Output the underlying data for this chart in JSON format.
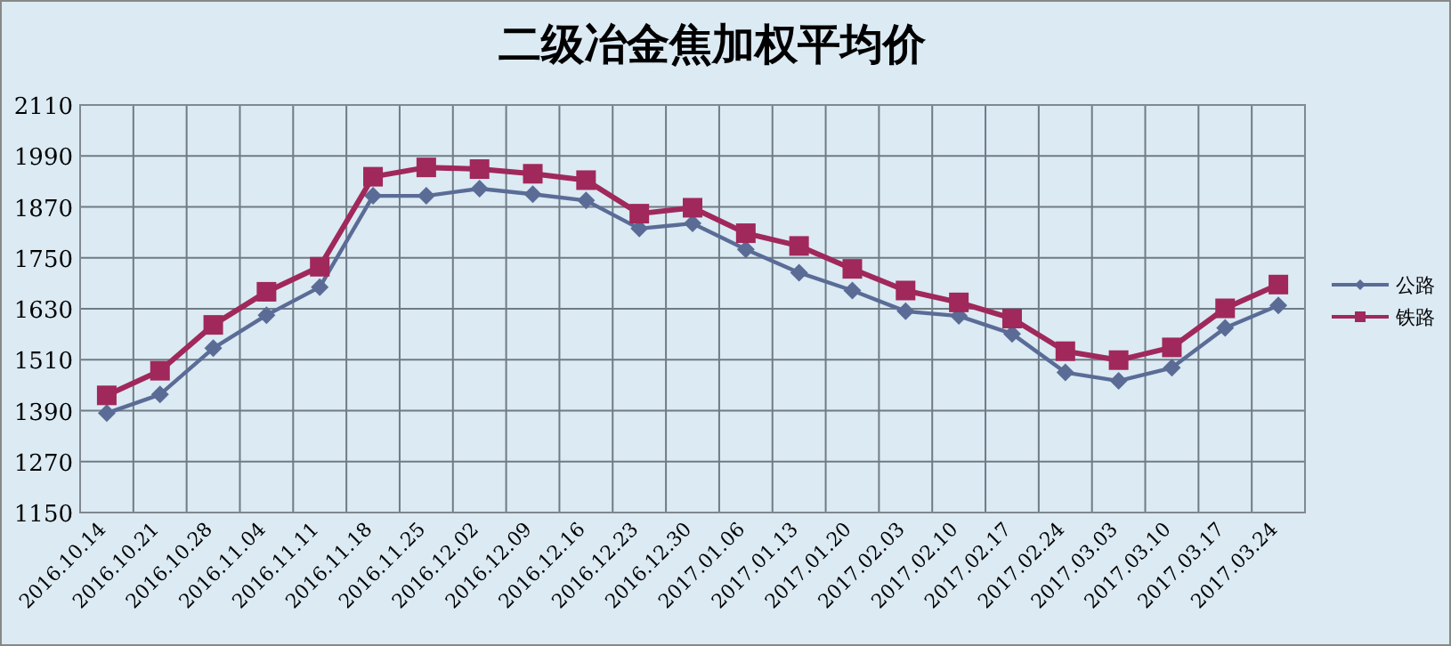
{
  "chart_data": {
    "type": "line",
    "title": "二级冶金焦加权平均价",
    "categories": [
      "2016.10.14",
      "2016.10.21",
      "2016.10.28",
      "2016.11.04",
      "2016.11.11",
      "2016.11.18",
      "2016.11.25",
      "2016.12.02",
      "2016.12.09",
      "2016.12.16",
      "2016.12.23",
      "2016.12.30",
      "2017.01.06",
      "2017.01.13",
      "2017.01.20",
      "2017.02.03",
      "2017.02.10",
      "2017.02.17",
      "2017.02.24",
      "2017.03.03",
      "2017.03.10",
      "2017.03.17",
      "2017.03.24"
    ],
    "series": [
      {
        "name": "公路",
        "color": "#5a6c96",
        "marker": "diamond",
        "values": [
          1384,
          1428,
          1537,
          1615,
          1681,
          1896,
          1896,
          1913,
          1900,
          1885,
          1819,
          1831,
          1770,
          1715,
          1673,
          1624,
          1613,
          1571,
          1480,
          1460,
          1491,
          1585,
          1638
        ]
      },
      {
        "name": "铁路",
        "color": "#a0285a",
        "marker": "square",
        "values": [
          1426,
          1484,
          1592,
          1670,
          1729,
          1941,
          1963,
          1959,
          1948,
          1933,
          1854,
          1868,
          1808,
          1778,
          1724,
          1673,
          1645,
          1607,
          1530,
          1509,
          1539,
          1631,
          1687
        ]
      }
    ],
    "ylim": [
      1150,
      2110
    ],
    "yticks": [
      1150,
      1270,
      1390,
      1510,
      1630,
      1750,
      1870,
      1990,
      2110
    ],
    "grid": true,
    "legend": "right"
  }
}
